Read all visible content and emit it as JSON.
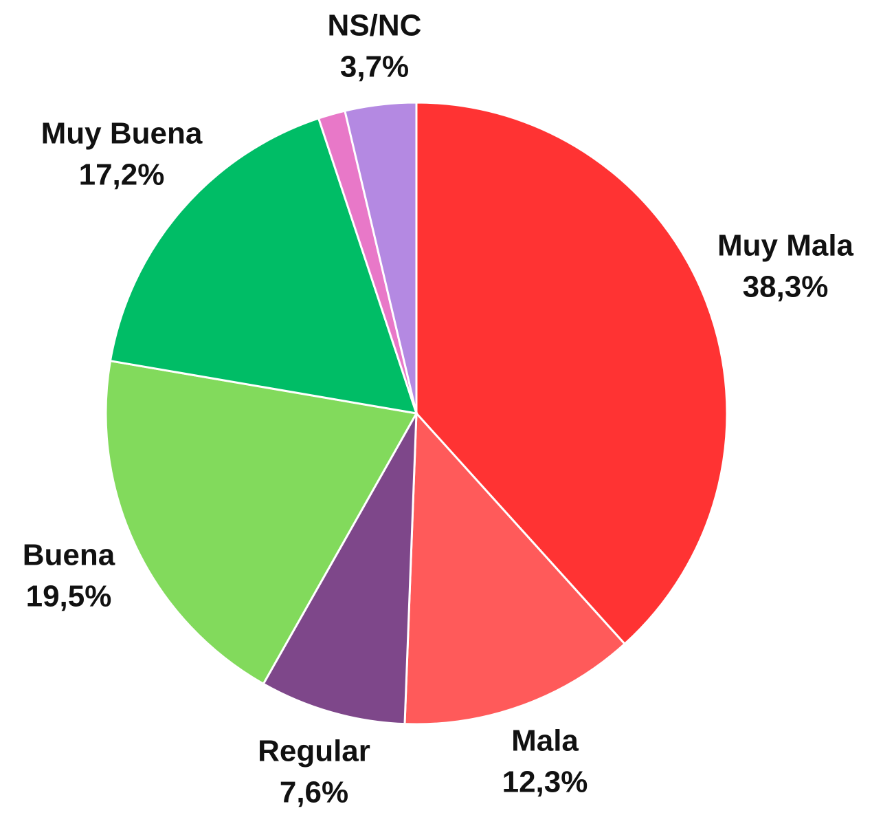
{
  "chart_data": {
    "type": "pie",
    "categories": [
      "Muy Mala",
      "Mala",
      "Regular",
      "Buena",
      "Muy Buena",
      null,
      "NS/NC"
    ],
    "values": [
      38.3,
      12.3,
      7.6,
      19.5,
      17.2,
      1.4,
      3.7
    ],
    "value_labels": [
      "38,3%",
      "12,3%",
      "7,6%",
      "19,5%",
      "17,2%",
      null,
      "3,7%"
    ],
    "colors": [
      "#ff3333",
      "#ff5a5a",
      "#7e478a",
      "#82da5c",
      "#00bd66",
      "#e878c8",
      "#b489e2"
    ]
  }
}
